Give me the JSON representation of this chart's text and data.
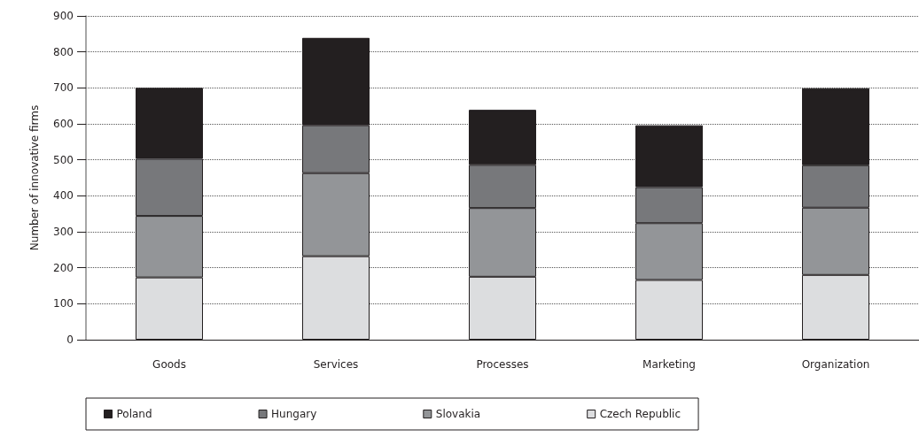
{
  "chart_data": {
    "type": "bar",
    "stacked": true,
    "ylabel": "Number of innovative firms",
    "categories": [
      "Goods",
      "Services",
      "Processes",
      "Marketing",
      "Organization"
    ],
    "series": [
      {
        "name": "Czech Republic",
        "color": "#dcdddf",
        "values": [
          173,
          232,
          175,
          166,
          180
        ]
      },
      {
        "name": "Slovakia",
        "color": "#939598",
        "values": [
          171,
          231,
          191,
          158,
          187
        ]
      },
      {
        "name": "Hungary",
        "color": "#77787b",
        "values": [
          159,
          133,
          120,
          100,
          118
        ]
      },
      {
        "name": "Poland",
        "color": "#231f20",
        "values": [
          197,
          243,
          153,
          172,
          214
        ]
      }
    ],
    "ylim": [
      0,
      900
    ],
    "yticks": [
      0,
      100,
      200,
      300,
      400,
      500,
      600,
      700,
      800,
      900
    ],
    "grid": "y",
    "legend": "bottom"
  }
}
